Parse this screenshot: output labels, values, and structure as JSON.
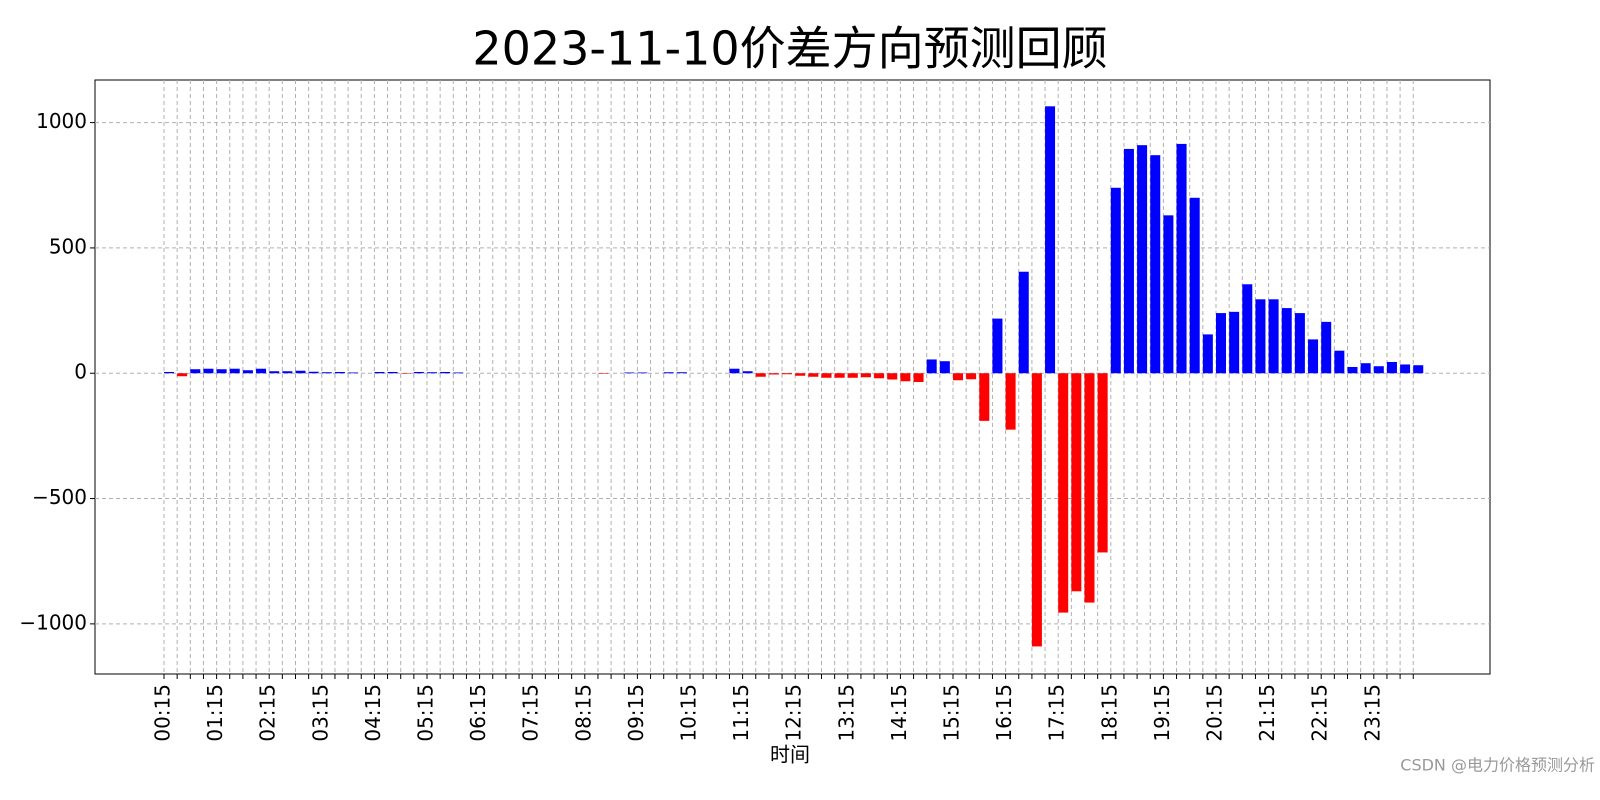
{
  "chart_data": {
    "type": "bar",
    "title": "2023-11-10价差方向预测回顾",
    "xlabel": "时间",
    "annotation": "CSDN @电力价格预测分析",
    "categories": [
      "00:15",
      null,
      null,
      null,
      "01:15",
      null,
      null,
      null,
      "02:15",
      null,
      null,
      null,
      "03:15",
      null,
      null,
      null,
      "04:15",
      null,
      null,
      null,
      "05:15",
      null,
      null,
      null,
      "06:15",
      null,
      null,
      null,
      "07:15",
      null,
      null,
      null,
      "08:15",
      null,
      null,
      null,
      "09:15",
      null,
      null,
      null,
      "10:15",
      null,
      null,
      null,
      "11:15",
      null,
      null,
      null,
      "12:15",
      null,
      null,
      null,
      "13:15",
      null,
      null,
      null,
      "14:15",
      null,
      null,
      null,
      "15:15",
      null,
      null,
      null,
      "16:15",
      null,
      null,
      null,
      "17:15",
      null,
      null,
      null,
      "18:15",
      null,
      null,
      null,
      "19:15",
      null,
      null,
      null,
      "20:15",
      null,
      null,
      null,
      "21:15",
      null,
      null,
      null,
      "22:15",
      null,
      null,
      null,
      "23:15",
      null,
      null,
      null
    ],
    "values": [
      5,
      -12,
      16,
      18,
      16,
      18,
      12,
      18,
      8,
      8,
      10,
      6,
      4,
      5,
      3,
      0,
      5,
      5,
      -2,
      5,
      4,
      5,
      3,
      0,
      0,
      0,
      0,
      0,
      0,
      0,
      0,
      0,
      0,
      -2,
      0,
      3,
      3,
      0,
      4,
      4,
      0,
      0,
      0,
      18,
      8,
      -14,
      -5,
      -4,
      -10,
      -14,
      -18,
      -18,
      -18,
      -16,
      -20,
      -25,
      -32,
      -35,
      55,
      48,
      -28,
      -24,
      -190,
      218,
      -225,
      405,
      -1090,
      1065,
      -955,
      -870,
      -915,
      -715,
      740,
      895,
      910,
      870,
      630,
      915,
      700,
      155,
      240,
      245,
      355,
      295,
      295,
      260,
      240,
      135,
      205,
      90,
      25,
      40,
      28,
      45,
      35,
      32
    ],
    "positive_color": "#0000ff",
    "negative_color": "#ff0000",
    "ylim": [
      -1200,
      1170
    ],
    "yticks": [
      {
        "value": -1000,
        "label": "−1000"
      },
      {
        "value": -500,
        "label": "−500"
      },
      0,
      500,
      1000
    ],
    "grid": true
  }
}
